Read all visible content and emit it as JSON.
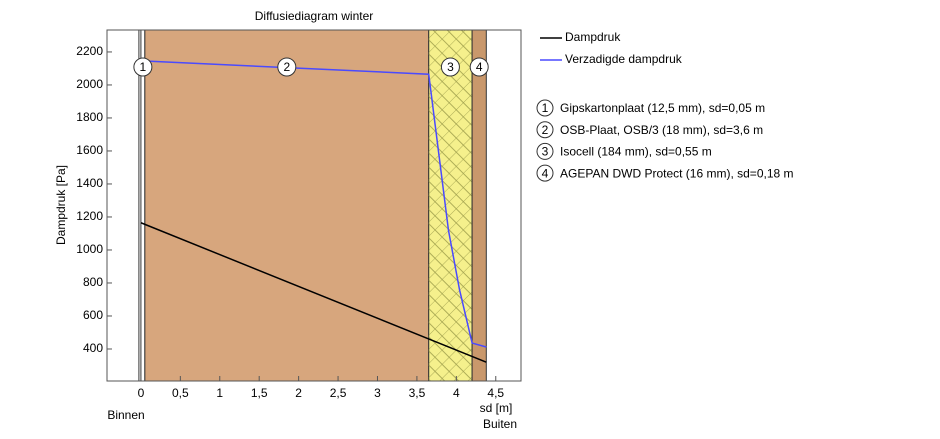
{
  "chart_data": {
    "type": "line",
    "title": "Diffusiediagram winter",
    "x_label": "sd [m]",
    "y_label": "Dampdruk [Pa]",
    "x_left_label": "Binnen",
    "x_right_label": "Buiten",
    "xlim": [
      -0.43,
      4.82
    ],
    "ylim": [
      206,
      2333
    ],
    "xticks": [
      0,
      {
        "value": 0.5,
        "label": "0,5"
      },
      1,
      {
        "value": 1.5,
        "label": "1,5"
      },
      2,
      {
        "value": 2.5,
        "label": "2,5"
      },
      3,
      {
        "value": 3.5,
        "label": "3,5"
      },
      4,
      {
        "value": 4.5,
        "label": "4,5"
      }
    ],
    "yticks": [
      400,
      600,
      800,
      1000,
      1200,
      1400,
      1600,
      1800,
      2000,
      2200
    ],
    "layers": [
      {
        "label": "1",
        "name": "Gipskartonplaat (12,5 mm), sd=0,05 m",
        "start": 0,
        "end": 0.05,
        "color": "#ffffff"
      },
      {
        "label": "2",
        "name": "OSB-Plaat, OSB/3 (18 mm), sd=3,6 m",
        "start": 0.05,
        "end": 3.65,
        "color": "#d7a67d"
      },
      {
        "label": "3",
        "name": "Isocell (184 mm), sd=0,55 m",
        "start": 3.65,
        "end": 4.2,
        "color": "#f5f08c",
        "hatch": true
      },
      {
        "label": "4",
        "name": "AGEPAN DWD Protect (16 mm), sd=0,18 m",
        "start": 4.2,
        "end": 4.38,
        "color": "#c9986c"
      }
    ],
    "series": [
      {
        "name": "Dampdruk",
        "color": "#000000",
        "x": [
          0,
          4.38
        ],
        "values": [
          1165,
          320
        ]
      },
      {
        "name": "Verzadigde dampdruk",
        "color": "#4a4aff",
        "x": [
          0,
          0.05,
          3.65,
          3.9,
          4.04,
          4.2,
          4.38
        ],
        "values": [
          2148,
          2145,
          2065,
          1120,
          760,
          436,
          412
        ]
      }
    ]
  }
}
